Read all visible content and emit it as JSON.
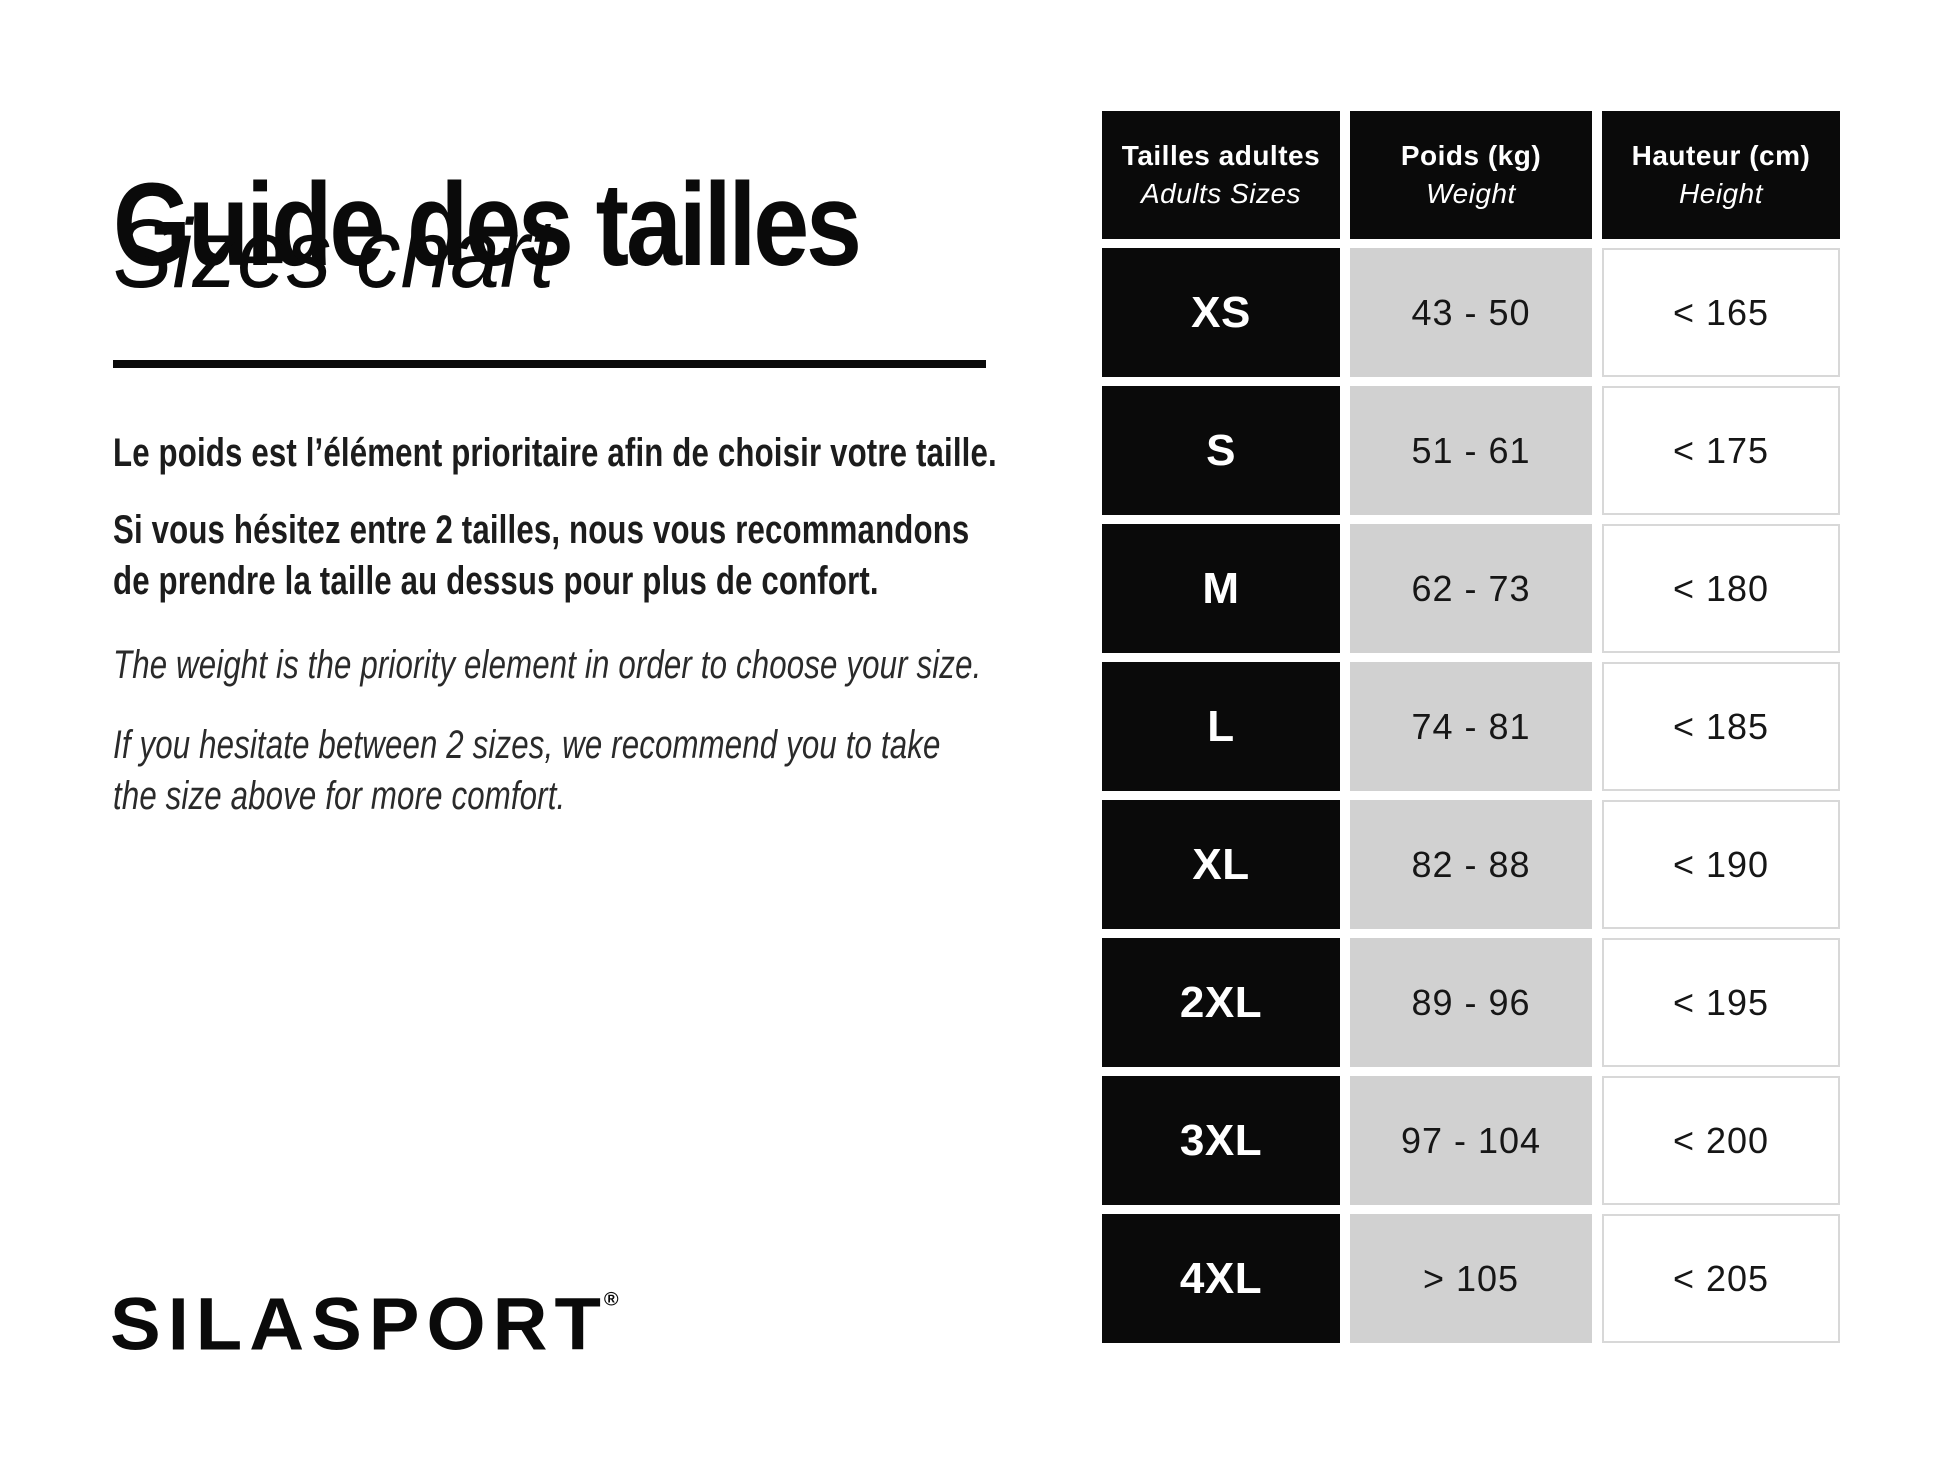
{
  "header": {
    "title_fr": "Guide des tailles",
    "title_en": "Sizes chart"
  },
  "intro": {
    "fr_line1": "Le poids est l’élément prioritaire afin de choisir votre taille.",
    "fr_line2a": "Si vous hésitez entre 2 tailles, nous vous recommandons",
    "fr_line2b": "de prendre la taille au dessus pour plus de confort.",
    "en_line1": "The weight is the priority element in order to choose your size.",
    "en_line2a": "If you hesitate between 2 sizes, we recommend you to take",
    "en_line2b": "the size above for more comfort."
  },
  "brand": {
    "logo_text": "SILASPORT",
    "registered_mark": "®"
  },
  "colors": {
    "black": "#0a0a0a",
    "gray_cell": "#d1d1d1",
    "white_cell_border": "#d8d8d8",
    "background": "#ffffff"
  },
  "chart_data": {
    "type": "table",
    "columns": [
      {
        "fr": "Tailles adultes",
        "en": "Adults Sizes"
      },
      {
        "fr": "Poids (kg)",
        "en": "Weight"
      },
      {
        "fr": "Hauteur (cm)",
        "en": "Height"
      }
    ],
    "rows": [
      {
        "size": "XS",
        "weight": "43 - 50",
        "height": "< 165"
      },
      {
        "size": "S",
        "weight": "51 - 61",
        "height": "< 175"
      },
      {
        "size": "M",
        "weight": "62 - 73",
        "height": "< 180"
      },
      {
        "size": "L",
        "weight": "74 - 81",
        "height": "< 185"
      },
      {
        "size": "XL",
        "weight": "82 - 88",
        "height": "< 190"
      },
      {
        "size": "2XL",
        "weight": "89 - 96",
        "height": "< 195"
      },
      {
        "size": "3XL",
        "weight": "97 - 104",
        "height": "< 200"
      },
      {
        "size": "4XL",
        "weight": "> 105",
        "height": "< 205"
      }
    ]
  }
}
